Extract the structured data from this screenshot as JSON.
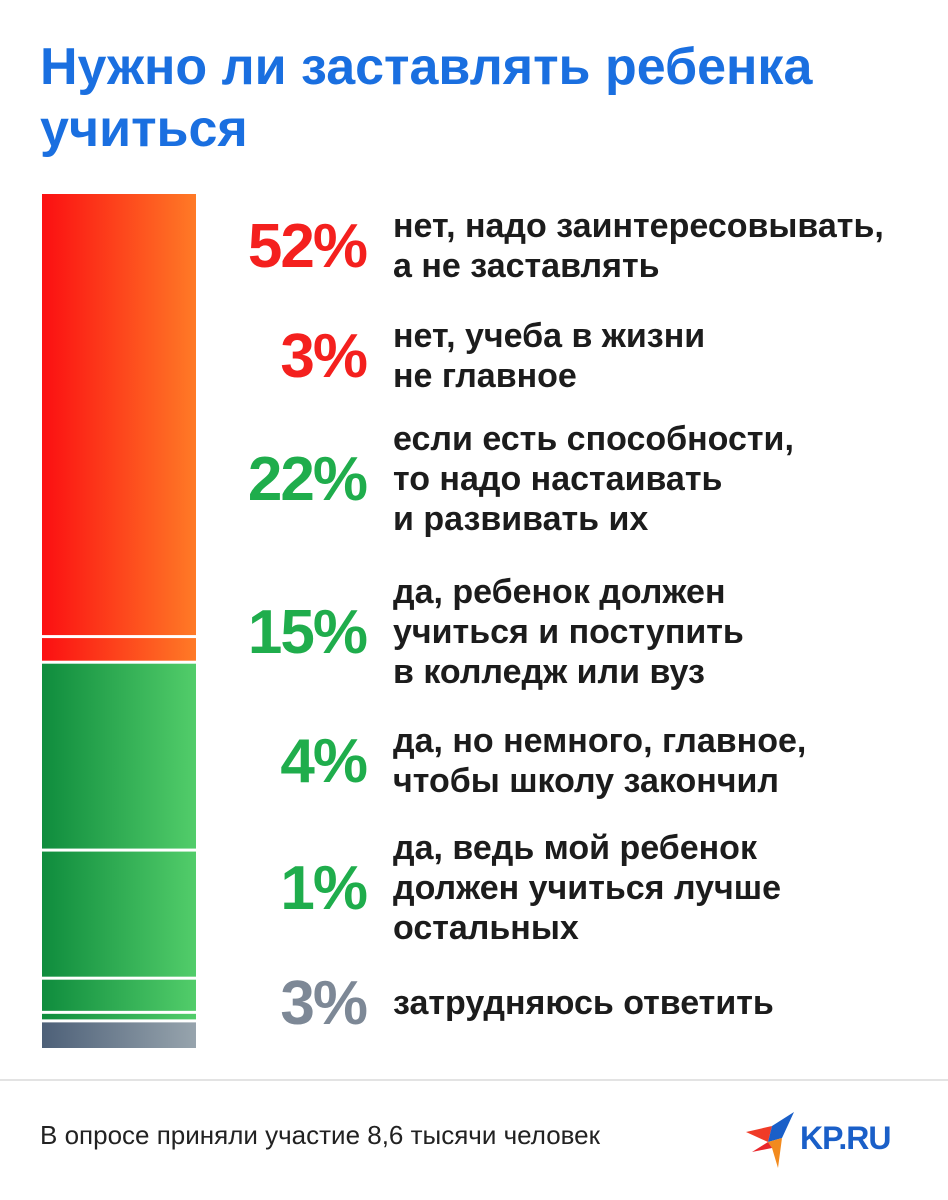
{
  "chart_data": {
    "type": "bar",
    "stacked": true,
    "title": "Нужно ли заставлять ребенка учиться",
    "categories": [
      [
        "нет, надо заинтересовывать,",
        "а не заставлять"
      ],
      [
        "нет, учеба в жизни",
        "не главное"
      ],
      [
        "если есть способности,",
        "то надо настаивать",
        "и развивать их"
      ],
      [
        "да, ребенок должен",
        "учиться и поступить",
        "в колледж или вуз"
      ],
      [
        "да, но немного, главное,",
        "чтобы школу закончил"
      ],
      [
        "да, ведь мой ребенок",
        "должен учиться лучше",
        "остальных"
      ],
      [
        "затрудняюсь ответить"
      ]
    ],
    "values": [
      52,
      3,
      22,
      15,
      4,
      1,
      3
    ],
    "value_labels": [
      "52%",
      "3%",
      "22%",
      "15%",
      "4%",
      "1%",
      "3%"
    ],
    "groups": [
      "red",
      "red",
      "green",
      "green",
      "green",
      "green",
      "gray"
    ],
    "colors": {
      "red": "#f4201e",
      "green": "#1fad4c",
      "gray": "#7d8896"
    }
  },
  "footer": {
    "note": "В опросе приняли участие 8,6 тысячи человек",
    "logo_text": "KP.RU"
  }
}
